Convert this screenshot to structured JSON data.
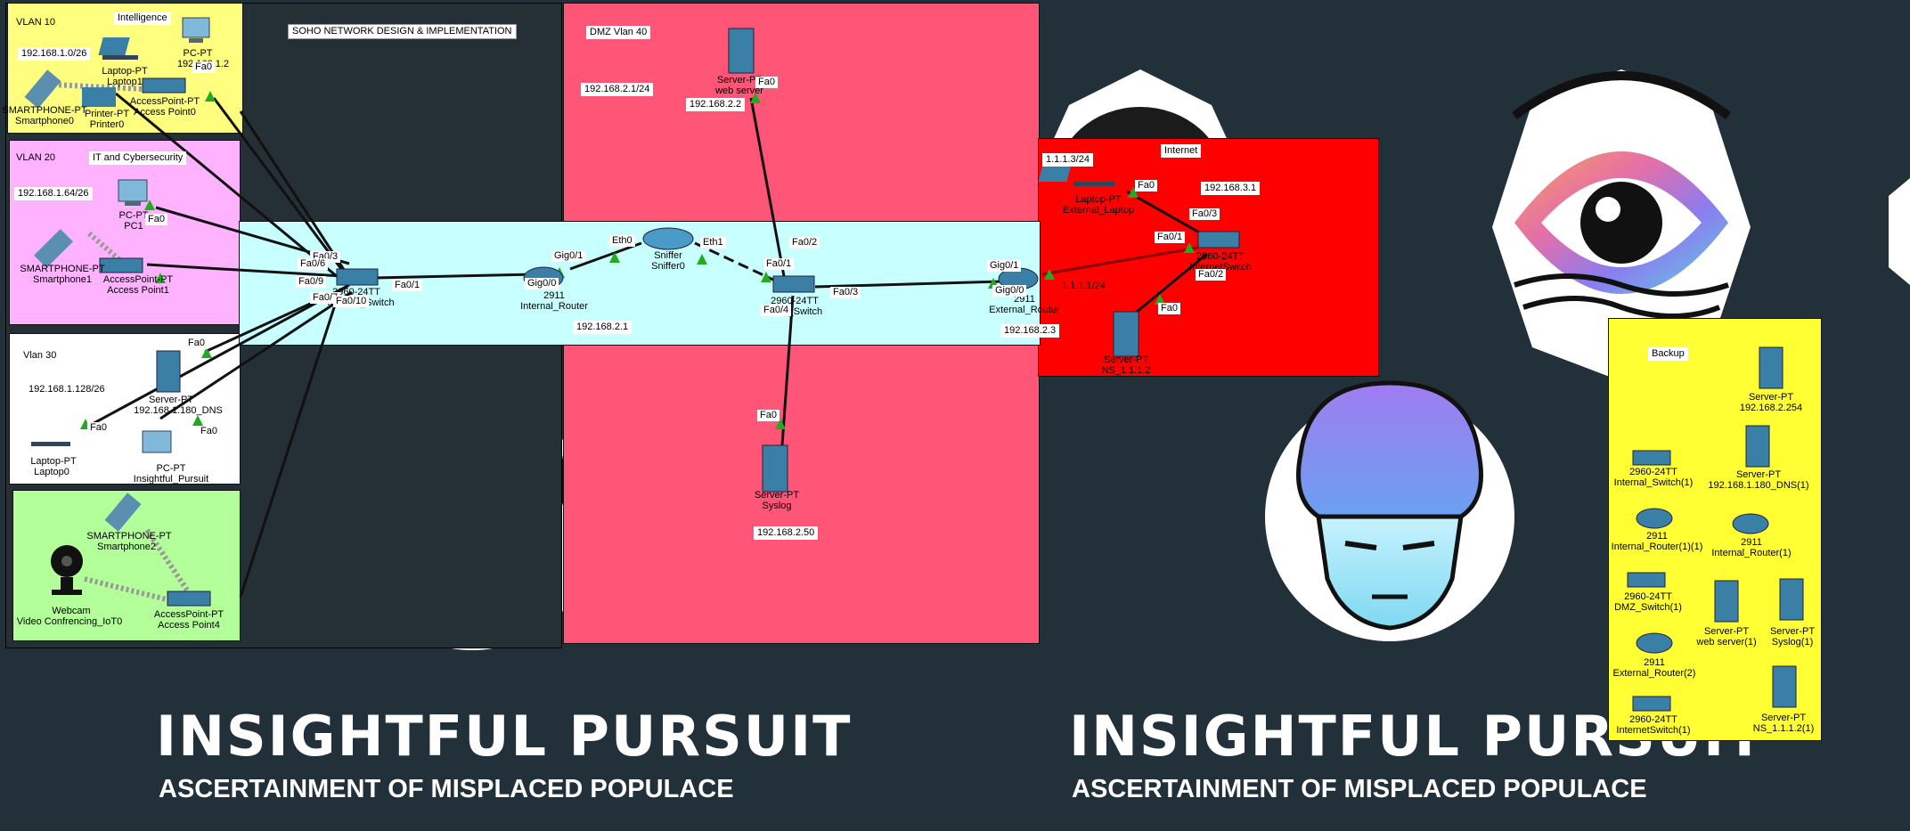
{
  "background": {
    "banner_left_title": "INSIGHTFUL PURSUIT",
    "banner_left_subtitle": "ASCERTAINMENT OF MISPLACED POPULACE",
    "banner_right_title": "INSIGHTFUL PURSUIT",
    "banner_right_subtitle": "ASCERTAINMENT OF MISPLACED POPULACE"
  },
  "title_note": "SOHO NETWORK DESIGN & IMPLEMENTATION",
  "zones": {
    "vlan10": {
      "name": "VLAN 10",
      "dept": "Intelligence",
      "subnet": "192.168.1.0/26",
      "color": "#ffff7f"
    },
    "vlan20": {
      "name": "VLAN 20",
      "dept": "IT and Cybersecurity",
      "subnet": "192.168.1.64/26",
      "color": "#ffb3ff"
    },
    "vlan30": {
      "name": "Vlan 30",
      "subnet": "192.168.1.128/26",
      "color": "#ffffff"
    },
    "iot": {
      "color": "#b3ff99"
    },
    "dmz": {
      "name": "DMZ Vlan 40",
      "subnet": "192.168.2.1/24",
      "color": "#ff5577"
    },
    "internet": {
      "name": "Internet",
      "color": "#ff0000"
    },
    "backup": {
      "name": "Backup",
      "color": "#ffff33"
    },
    "core": {
      "subnet": "192.168.2.1",
      "color": "#c8ffff"
    }
  },
  "devices": {
    "pc0": {
      "type": "PC-PT",
      "name": "PC0",
      "ip": "192.168.1.2"
    },
    "laptop1": {
      "type": "Laptop-PT",
      "name": "Laptop1"
    },
    "smartphone0": {
      "type": "SMARTPHONE-PT",
      "name": "Smartphone0"
    },
    "printer0": {
      "type": "Printer-PT",
      "name": "Printer0"
    },
    "ap0": {
      "type": "AccessPoint-PT",
      "name": "Access Point0"
    },
    "pc1": {
      "type": "PC-PT",
      "name": "PC1"
    },
    "smartphone1": {
      "type": "SMARTPHONE-PT",
      "name": "Smartphone1"
    },
    "ap1": {
      "type": "AccessPoint-PT",
      "name": "Access Point1"
    },
    "dns": {
      "type": "Server-PT",
      "name": "192.168.1.180_DNS"
    },
    "laptop0": {
      "type": "Laptop-PT",
      "name": "Laptop0"
    },
    "pc_ip": {
      "type": "PC-PT",
      "name": "Insightful_Pursuit"
    },
    "smartphone2": {
      "type": "SMARTPHONE-PT",
      "name": "Smartphone2"
    },
    "webcam": {
      "type": "Webcam",
      "name": "Video Confrencing_IoT0"
    },
    "ap4": {
      "type": "AccessPoint-PT",
      "name": "Access Point4"
    },
    "internal_switch": {
      "type": "2960-24TT",
      "name": "Internal_Switch"
    },
    "internal_router": {
      "type": "2911",
      "name": "Internal_Router"
    },
    "sniffer": {
      "type": "Sniffer",
      "name": "Sniffer0"
    },
    "dmz_switch": {
      "type": "2960-24TT",
      "name": "DMZ_Switch"
    },
    "web_server": {
      "type": "Server-PT",
      "name": "web server",
      "ip": "192.168.2.2"
    },
    "syslog": {
      "type": "Server-PT",
      "name": "Syslog",
      "ip": "192.168.2.50"
    },
    "external_router": {
      "type": "2911",
      "name": "External_Router",
      "ip": "192.168.2.3"
    },
    "ext_laptop": {
      "type": "Laptop-PT",
      "name": "External_Laptop",
      "ip": "1.1.1.3/24"
    },
    "internet_switch": {
      "type": "2960-24TT",
      "name": "InternetSwitch",
      "ip": "192.168.3.1"
    },
    "ns": {
      "type": "Server-PT",
      "name": "NS_1.1.1.2"
    },
    "ext_link": "1.1.1.1/24"
  },
  "ports": {
    "fa0": "Fa0",
    "fa0_1": "Fa0/1",
    "fa0_2": "Fa0/2",
    "fa0_3": "Fa0/3",
    "fa0_4": "Fa0/4",
    "fa0_6": "Fa0/6",
    "fa0_7": "Fa0/7",
    "fa0_9": "Fa0/9",
    "fa0_10": "Fa0/10",
    "gig0_0": "Gig0/0",
    "gig0_1": "Gig0/1",
    "eth0": "Eth0",
    "eth1": "Eth1"
  },
  "backup_items": [
    {
      "type": "Server-PT",
      "name": "192.168.2.254"
    },
    {
      "type": "2960-24TT",
      "name": "Internal_Switch(1)"
    },
    {
      "type": "Server-PT",
      "name": "192.168.1.180_DNS(1)"
    },
    {
      "type": "2911",
      "name": "Internal_Router(1)(1)"
    },
    {
      "type": "2911",
      "name": "Internal_Router(1)"
    },
    {
      "type": "2960-24TT",
      "name": "DMZ_Switch(1)"
    },
    {
      "type": "Server-PT",
      "name": "web server(1)"
    },
    {
      "type": "Server-PT",
      "name": "Syslog(1)"
    },
    {
      "type": "2911",
      "name": "External_Router(2)"
    },
    {
      "type": "2960-24TT",
      "name": "InternetSwitch(1)"
    },
    {
      "type": "Server-PT",
      "name": "NS_1.1.1.2(1)"
    }
  ],
  "colors": {
    "background": "#22303a",
    "link": "#111111",
    "port_ok": "#22aa22",
    "device": "#3a7fa6"
  }
}
